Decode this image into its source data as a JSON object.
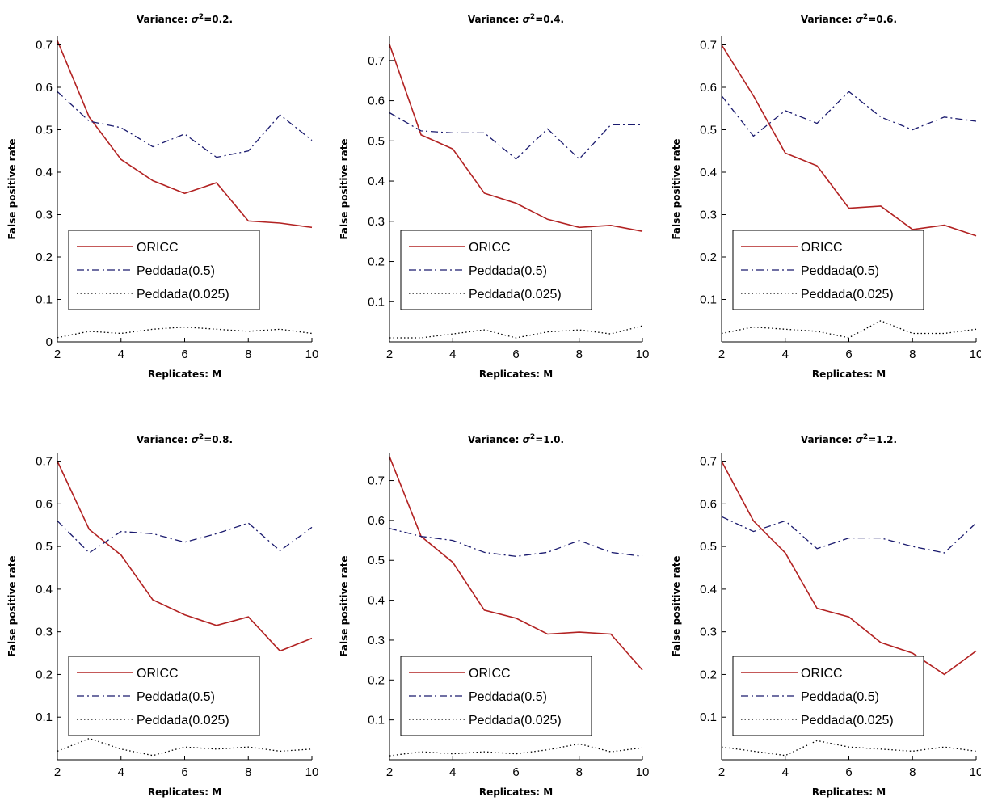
{
  "figure": {
    "xlabel": "Replicates: M",
    "ylabel": "False positive rate"
  },
  "legend_entries": [
    "ORICC",
    "Peddada(0.5)",
    "Peddada(0.025)"
  ],
  "colors": {
    "ORICC": "#b22222",
    "Peddada(0.5)": "#1a1a6e",
    "Peddada(0.025)": "#000000"
  },
  "chart_data": [
    {
      "type": "line",
      "title_prefix": "Variance: ",
      "title_sigma": "σ",
      "title_sup": "2",
      "title_suffix": "=0.2.",
      "xlabel": "Replicates: M",
      "ylabel": "False positive rate",
      "xlim": [
        2,
        10
      ],
      "ylim": [
        0,
        0.72
      ],
      "xticks": [
        "2",
        "4",
        "6",
        "8",
        "10"
      ],
      "yticks": [
        "0",
        "0.1",
        "0.2",
        "0.3",
        "0.4",
        "0.5",
        "0.6",
        "0.7"
      ],
      "x": [
        2,
        3,
        4,
        5,
        6,
        7,
        8,
        9,
        10
      ],
      "series": [
        {
          "name": "ORICC",
          "values": [
            0.71,
            0.53,
            0.43,
            0.38,
            0.35,
            0.375,
            0.285,
            0.28,
            0.27
          ]
        },
        {
          "name": "Peddada(0.5)",
          "values": [
            0.59,
            0.52,
            0.505,
            0.46,
            0.49,
            0.435,
            0.45,
            0.535,
            0.475
          ]
        },
        {
          "name": "Peddada(0.025)",
          "values": [
            0.01,
            0.025,
            0.02,
            0.03,
            0.035,
            0.03,
            0.025,
            0.03,
            0.02
          ]
        }
      ]
    },
    {
      "type": "line",
      "title_prefix": "Variance: ",
      "title_sigma": "σ",
      "title_sup": "2",
      "title_suffix": "=0.4.",
      "xlabel": "Replicates: M",
      "ylabel": "False positive rate",
      "xlim": [
        2,
        10
      ],
      "ylim": [
        0,
        0.76
      ],
      "xticks": [
        "2",
        "4",
        "6",
        "8",
        "10"
      ],
      "yticks": [
        "0.1",
        "0.2",
        "0.3",
        "0.4",
        "0.5",
        "0.6",
        "0.7"
      ],
      "x": [
        2,
        3,
        4,
        5,
        6,
        7,
        8,
        9,
        10
      ],
      "series": [
        {
          "name": "ORICC",
          "values": [
            0.74,
            0.515,
            0.48,
            0.37,
            0.345,
            0.305,
            0.285,
            0.29,
            0.275
          ]
        },
        {
          "name": "Peddada(0.5)",
          "values": [
            0.57,
            0.525,
            0.52,
            0.52,
            0.455,
            0.53,
            0.455,
            0.54,
            0.54
          ]
        },
        {
          "name": "Peddada(0.025)",
          "values": [
            0.01,
            0.01,
            0.02,
            0.03,
            0.01,
            0.025,
            0.03,
            0.02,
            0.04
          ]
        }
      ]
    },
    {
      "type": "line",
      "title_prefix": "Variance: ",
      "title_sigma": "σ",
      "title_sup": "2",
      "title_suffix": "=0.6.",
      "xlabel": "Replicates: M",
      "ylabel": "False positive rate",
      "xlim": [
        2,
        10
      ],
      "ylim": [
        0,
        0.72
      ],
      "xticks": [
        "2",
        "4",
        "6",
        "8",
        "10"
      ],
      "yticks": [
        "0.1",
        "0.2",
        "0.3",
        "0.4",
        "0.5",
        "0.6",
        "0.7"
      ],
      "x": [
        2,
        3,
        4,
        5,
        6,
        7,
        8,
        9,
        10
      ],
      "series": [
        {
          "name": "ORICC",
          "values": [
            0.7,
            0.58,
            0.445,
            0.415,
            0.315,
            0.32,
            0.265,
            0.275,
            0.25
          ]
        },
        {
          "name": "Peddada(0.5)",
          "values": [
            0.58,
            0.485,
            0.545,
            0.515,
            0.59,
            0.53,
            0.5,
            0.53,
            0.52
          ]
        },
        {
          "name": "Peddada(0.025)",
          "values": [
            0.02,
            0.035,
            0.03,
            0.025,
            0.01,
            0.05,
            0.02,
            0.02,
            0.03
          ]
        }
      ]
    },
    {
      "type": "line",
      "title_prefix": "Variance: ",
      "title_sigma": "σ",
      "title_sup": "2",
      "title_suffix": "=0.8.",
      "xlabel": "Replicates: M",
      "ylabel": "False positive rate",
      "xlim": [
        2,
        10
      ],
      "ylim": [
        0,
        0.72
      ],
      "xticks": [
        "2",
        "4",
        "6",
        "8",
        "10"
      ],
      "yticks": [
        "0.1",
        "0.2",
        "0.3",
        "0.4",
        "0.5",
        "0.6",
        "0.7"
      ],
      "x": [
        2,
        3,
        4,
        5,
        6,
        7,
        8,
        9,
        10
      ],
      "series": [
        {
          "name": "ORICC",
          "values": [
            0.7,
            0.54,
            0.48,
            0.375,
            0.34,
            0.315,
            0.335,
            0.255,
            0.285
          ]
        },
        {
          "name": "Peddada(0.5)",
          "values": [
            0.56,
            0.485,
            0.535,
            0.53,
            0.51,
            0.53,
            0.555,
            0.49,
            0.545
          ]
        },
        {
          "name": "Peddada(0.025)",
          "values": [
            0.02,
            0.05,
            0.025,
            0.01,
            0.03,
            0.025,
            0.03,
            0.02,
            0.025
          ]
        }
      ]
    },
    {
      "type": "line",
      "title_prefix": "Variance: ",
      "title_sigma": "σ",
      "title_sup": "2",
      "title_suffix": "=1.0.",
      "xlabel": "Replicates: M",
      "ylabel": "False positive rate",
      "xlim": [
        2,
        10
      ],
      "ylim": [
        0,
        0.77
      ],
      "xticks": [
        "2",
        "4",
        "6",
        "8",
        "10"
      ],
      "yticks": [
        "0.1",
        "0.2",
        "0.3",
        "0.4",
        "0.5",
        "0.6",
        "0.7"
      ],
      "x": [
        2,
        3,
        4,
        5,
        6,
        7,
        8,
        9,
        10
      ],
      "series": [
        {
          "name": "ORICC",
          "values": [
            0.76,
            0.56,
            0.495,
            0.375,
            0.355,
            0.315,
            0.32,
            0.315,
            0.225
          ]
        },
        {
          "name": "Peddada(0.5)",
          "values": [
            0.58,
            0.56,
            0.55,
            0.52,
            0.51,
            0.52,
            0.55,
            0.52,
            0.51
          ]
        },
        {
          "name": "Peddada(0.025)",
          "values": [
            0.01,
            0.02,
            0.015,
            0.02,
            0.015,
            0.025,
            0.04,
            0.02,
            0.03
          ]
        }
      ]
    },
    {
      "type": "line",
      "title_prefix": "Variance: ",
      "title_sigma": "σ",
      "title_sup": "2",
      "title_suffix": "=1.2.",
      "xlabel": "Replicates: M",
      "ylabel": "False positive rate",
      "xlim": [
        2,
        10
      ],
      "ylim": [
        0,
        0.72
      ],
      "xticks": [
        "2",
        "4",
        "6",
        "8",
        "10"
      ],
      "yticks": [
        "0.1",
        "0.2",
        "0.3",
        "0.4",
        "0.5",
        "0.6",
        "0.7"
      ],
      "x": [
        2,
        3,
        4,
        5,
        6,
        7,
        8,
        9,
        10
      ],
      "series": [
        {
          "name": "ORICC",
          "values": [
            0.7,
            0.56,
            0.485,
            0.355,
            0.335,
            0.275,
            0.25,
            0.2,
            0.255
          ]
        },
        {
          "name": "Peddada(0.5)",
          "values": [
            0.57,
            0.535,
            0.56,
            0.495,
            0.52,
            0.52,
            0.5,
            0.485,
            0.555
          ]
        },
        {
          "name": "Peddada(0.025)",
          "values": [
            0.03,
            0.02,
            0.01,
            0.045,
            0.03,
            0.025,
            0.02,
            0.03,
            0.02
          ]
        }
      ]
    }
  ]
}
